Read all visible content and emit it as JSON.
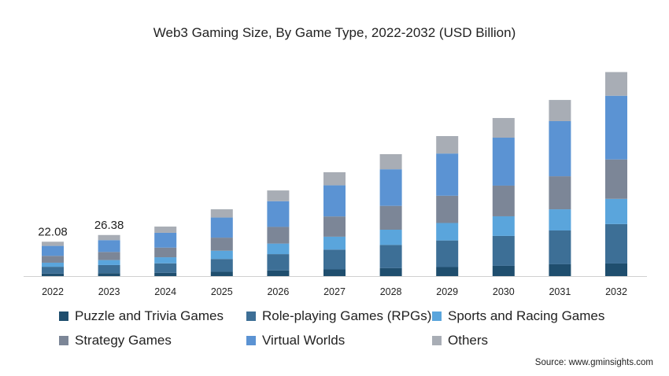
{
  "chart_data": {
    "type": "bar",
    "stacked": true,
    "title": "Web3 Gaming Size, By Game Type, 2022-2032 (USD Billion)",
    "xlabel": "",
    "ylabel": "",
    "categories": [
      "2022",
      "2023",
      "2024",
      "2025",
      "2026",
      "2027",
      "2028",
      "2029",
      "2030",
      "2031",
      "2032"
    ],
    "series": [
      {
        "name": "Puzzle and Trivia Games",
        "color": "#1f4e6e",
        "values": [
          1.6,
          1.9,
          2.1,
          2.8,
          3.6,
          4.3,
          5.1,
          5.8,
          6.6,
          7.6,
          8.1
        ]
      },
      {
        "name": "Role-playing Games (RPGs)",
        "color": "#3d6f96",
        "values": [
          4.4,
          5.2,
          6.1,
          8.2,
          10.5,
          12.7,
          14.9,
          17.1,
          19.2,
          21.7,
          25.3
        ]
      },
      {
        "name": "Sports and Racing Games",
        "color": "#5aa5dc",
        "values": [
          2.6,
          3.2,
          3.9,
          5.3,
          6.8,
          8.3,
          9.8,
          11.2,
          12.6,
          13.6,
          16.2
        ]
      },
      {
        "name": "Strategy Games",
        "color": "#7c8697",
        "values": [
          4.4,
          5.2,
          6.2,
          8.4,
          10.7,
          13.0,
          15.3,
          17.5,
          19.7,
          21.2,
          25.3
        ]
      },
      {
        "name": "Virtual Worlds",
        "color": "#5b93d3",
        "values": [
          6.4,
          7.6,
          9.5,
          12.9,
          16.5,
          20.0,
          23.5,
          27.1,
          30.8,
          35.4,
          40.9
        ]
      },
      {
        "name": "Others",
        "color": "#a8adb5",
        "values": [
          2.68,
          3.28,
          4.0,
          5.3,
          6.9,
          8.4,
          9.7,
          11.2,
          12.6,
          13.6,
          15.2
        ]
      }
    ],
    "data_labels": [
      {
        "category": "2022",
        "text": "22.08"
      },
      {
        "category": "2023",
        "text": "26.38"
      }
    ],
    "ylim": [
      0,
      135
    ],
    "grid": false,
    "legend_placement": "bottom"
  },
  "source": "Source: www.gminsights.com"
}
